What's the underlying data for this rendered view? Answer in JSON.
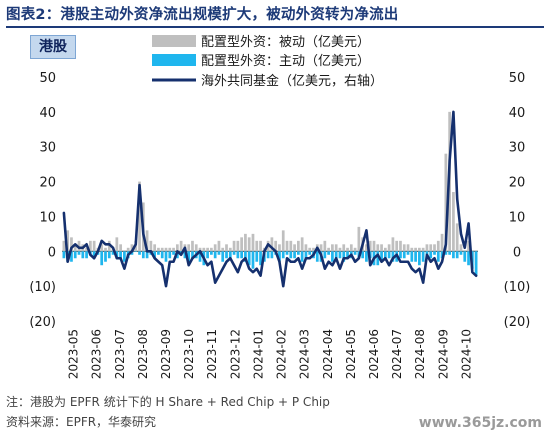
{
  "header": {
    "title": "图表2：港股主动外资净流出规模扩大，被动外资转为净流出",
    "tag": "港股"
  },
  "chart_data": {
    "type": "bar",
    "legend": [
      {
        "key": "passive",
        "label": "配置型外资：被动（亿美元）",
        "kind": "bar",
        "color": "#bfbfbf"
      },
      {
        "key": "active",
        "label": "配置型外资：主动（亿美元）",
        "kind": "bar",
        "color": "#1fb6ee"
      },
      {
        "key": "fund",
        "label": "海外共同基金（亿美元，右轴）",
        "kind": "line",
        "color": "#15306e"
      }
    ],
    "left_axis": {
      "ylim": [
        -20,
        50
      ],
      "ticks": [
        "50",
        "40",
        "30",
        "20",
        "10",
        "0",
        "(10)",
        "(20)"
      ]
    },
    "right_axis": {
      "ylim": [
        -20,
        50
      ],
      "ticks": [
        "50",
        "40",
        "30",
        "20",
        "10",
        "0",
        "(10)",
        "(20)"
      ]
    },
    "x_ticks": [
      "2023-05",
      "2023-06",
      "2023-07",
      "2023-08",
      "2023-09",
      "2023-10",
      "2023-11",
      "2023-12",
      "2024-01",
      "2024-02",
      "2024-03",
      "2024-04",
      "2024-05",
      "2024-06",
      "2024-07",
      "2024-08",
      "2024-09",
      "2024-10"
    ],
    "x_range": [
      "2023-05-01",
      "2024-10-31"
    ],
    "series": [
      {
        "name": "配置型外资：被动（亿美元）",
        "key": "passive",
        "values": [
          3,
          6,
          4,
          2,
          3,
          2,
          1,
          3,
          3,
          1,
          2,
          1,
          3,
          1,
          4,
          2,
          0,
          1,
          2,
          3,
          20,
          14,
          6,
          3,
          2,
          1,
          1,
          1,
          1,
          1,
          2,
          3,
          2,
          2,
          3,
          2,
          1,
          1,
          1,
          1,
          2,
          3,
          1,
          2,
          1,
          3,
          3,
          4,
          5,
          4,
          5,
          3,
          3,
          1,
          3,
          4,
          3,
          2,
          6,
          3,
          3,
          2,
          3,
          4,
          2,
          1,
          1,
          2,
          2,
          3,
          1,
          2,
          2,
          1,
          2,
          1,
          2,
          1,
          7,
          4,
          2,
          3,
          3,
          2,
          2,
          1,
          2,
          4,
          3,
          3,
          2,
          2,
          1,
          1,
          1,
          1,
          2,
          2,
          2,
          3,
          5,
          28,
          40,
          17,
          8,
          2,
          -2,
          3,
          -3,
          -4
        ]
      },
      {
        "name": "配置型外资：主动（亿美元）",
        "key": "active",
        "values": [
          -2,
          -3,
          -3,
          -2,
          -1,
          -2,
          -2,
          -1,
          -2,
          -1,
          -4,
          -3,
          -2,
          -1,
          -2,
          -2,
          -3,
          -2,
          -1,
          0,
          -1,
          -2,
          -2,
          -1,
          -2,
          -1,
          -2,
          -3,
          -2,
          -1,
          -2,
          -1,
          -2,
          -3,
          -2,
          -2,
          -3,
          -4,
          -2,
          -1,
          -2,
          -1,
          -3,
          -2,
          -2,
          -1,
          -2,
          -2,
          -3,
          -4,
          -5,
          -3,
          -4,
          -3,
          -2,
          -2,
          -1,
          -3,
          -2,
          -1,
          -2,
          -2,
          -1,
          -3,
          -2,
          -1,
          -2,
          -3,
          -3,
          -2,
          -1,
          -3,
          -2,
          -2,
          -3,
          -2,
          -2,
          -1,
          -2,
          -2,
          -3,
          -2,
          -4,
          -4,
          -3,
          -2,
          -2,
          -3,
          -3,
          -2,
          -2,
          -1,
          -3,
          -3,
          -4,
          -3,
          -1,
          -2,
          -1,
          -3,
          -2,
          -1,
          -1,
          -2,
          -2,
          -1,
          -3,
          -4,
          -5,
          -7
        ]
      },
      {
        "name": "海外共同基金（亿美元，右轴）",
        "key": "fund",
        "values": [
          11,
          -3,
          1,
          2,
          1,
          1,
          2,
          -1,
          -2,
          0,
          3,
          2,
          2,
          1,
          -2,
          -2,
          -5,
          -1,
          0,
          2,
          19,
          5,
          0,
          0,
          -2,
          -3,
          -4,
          -10,
          -3,
          -3,
          0,
          -1,
          1,
          -4,
          -2,
          -1,
          0,
          -2,
          -4,
          -3,
          -9,
          -7,
          -5,
          -3,
          -2,
          -4,
          -6,
          -3,
          -2,
          -5,
          -6,
          -5,
          -7,
          0,
          2,
          1,
          0,
          -3,
          -10,
          -2,
          -3,
          -3,
          -2,
          -5,
          -2,
          -2,
          -1,
          1,
          -1,
          -5,
          -3,
          -4,
          -2,
          -5,
          -2,
          -2,
          -1,
          -3,
          -2,
          2,
          6,
          -4,
          -2,
          -1,
          -3,
          -2,
          -4,
          -2,
          -1,
          -3,
          -3,
          -3,
          -5,
          -6,
          -5,
          -9,
          -1,
          -3,
          -2,
          -5,
          -3,
          2,
          26,
          40,
          15,
          5,
          1,
          8,
          -6,
          -7
        ]
      }
    ]
  },
  "footnotes": {
    "note": "注：港股为 EPFR 统计下的 H Share + Red Chip + P Chip",
    "source": "资料来源：EPFR，华泰研究"
  },
  "watermark": "www.365jz.com"
}
